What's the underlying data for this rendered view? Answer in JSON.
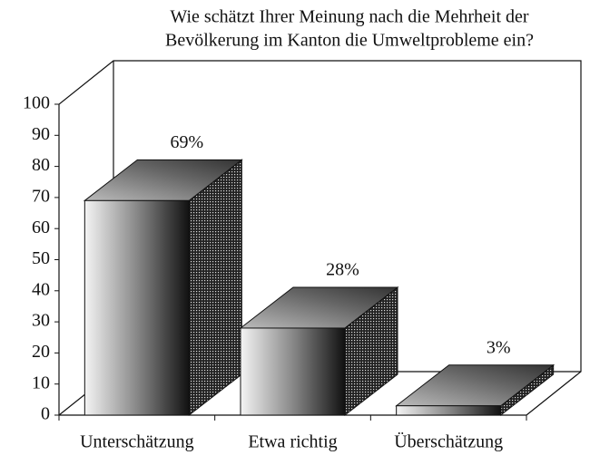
{
  "chart_data": {
    "type": "bar3d",
    "title": [
      "Wie schätzt Ihrer Meinung nach die Mehrheit der",
      "Bevölkerung im Kanton die Umweltprobleme ein?"
    ],
    "categories": [
      "Unterschätzung",
      "Etwa richtig",
      "Überschätzung"
    ],
    "values": [
      69,
      28,
      3
    ],
    "value_labels": [
      "69%",
      "28%",
      "3%"
    ],
    "ylim": [
      0,
      100
    ],
    "yticks": [
      0,
      10,
      20,
      30,
      40,
      50,
      60,
      70,
      80,
      90,
      100
    ]
  }
}
